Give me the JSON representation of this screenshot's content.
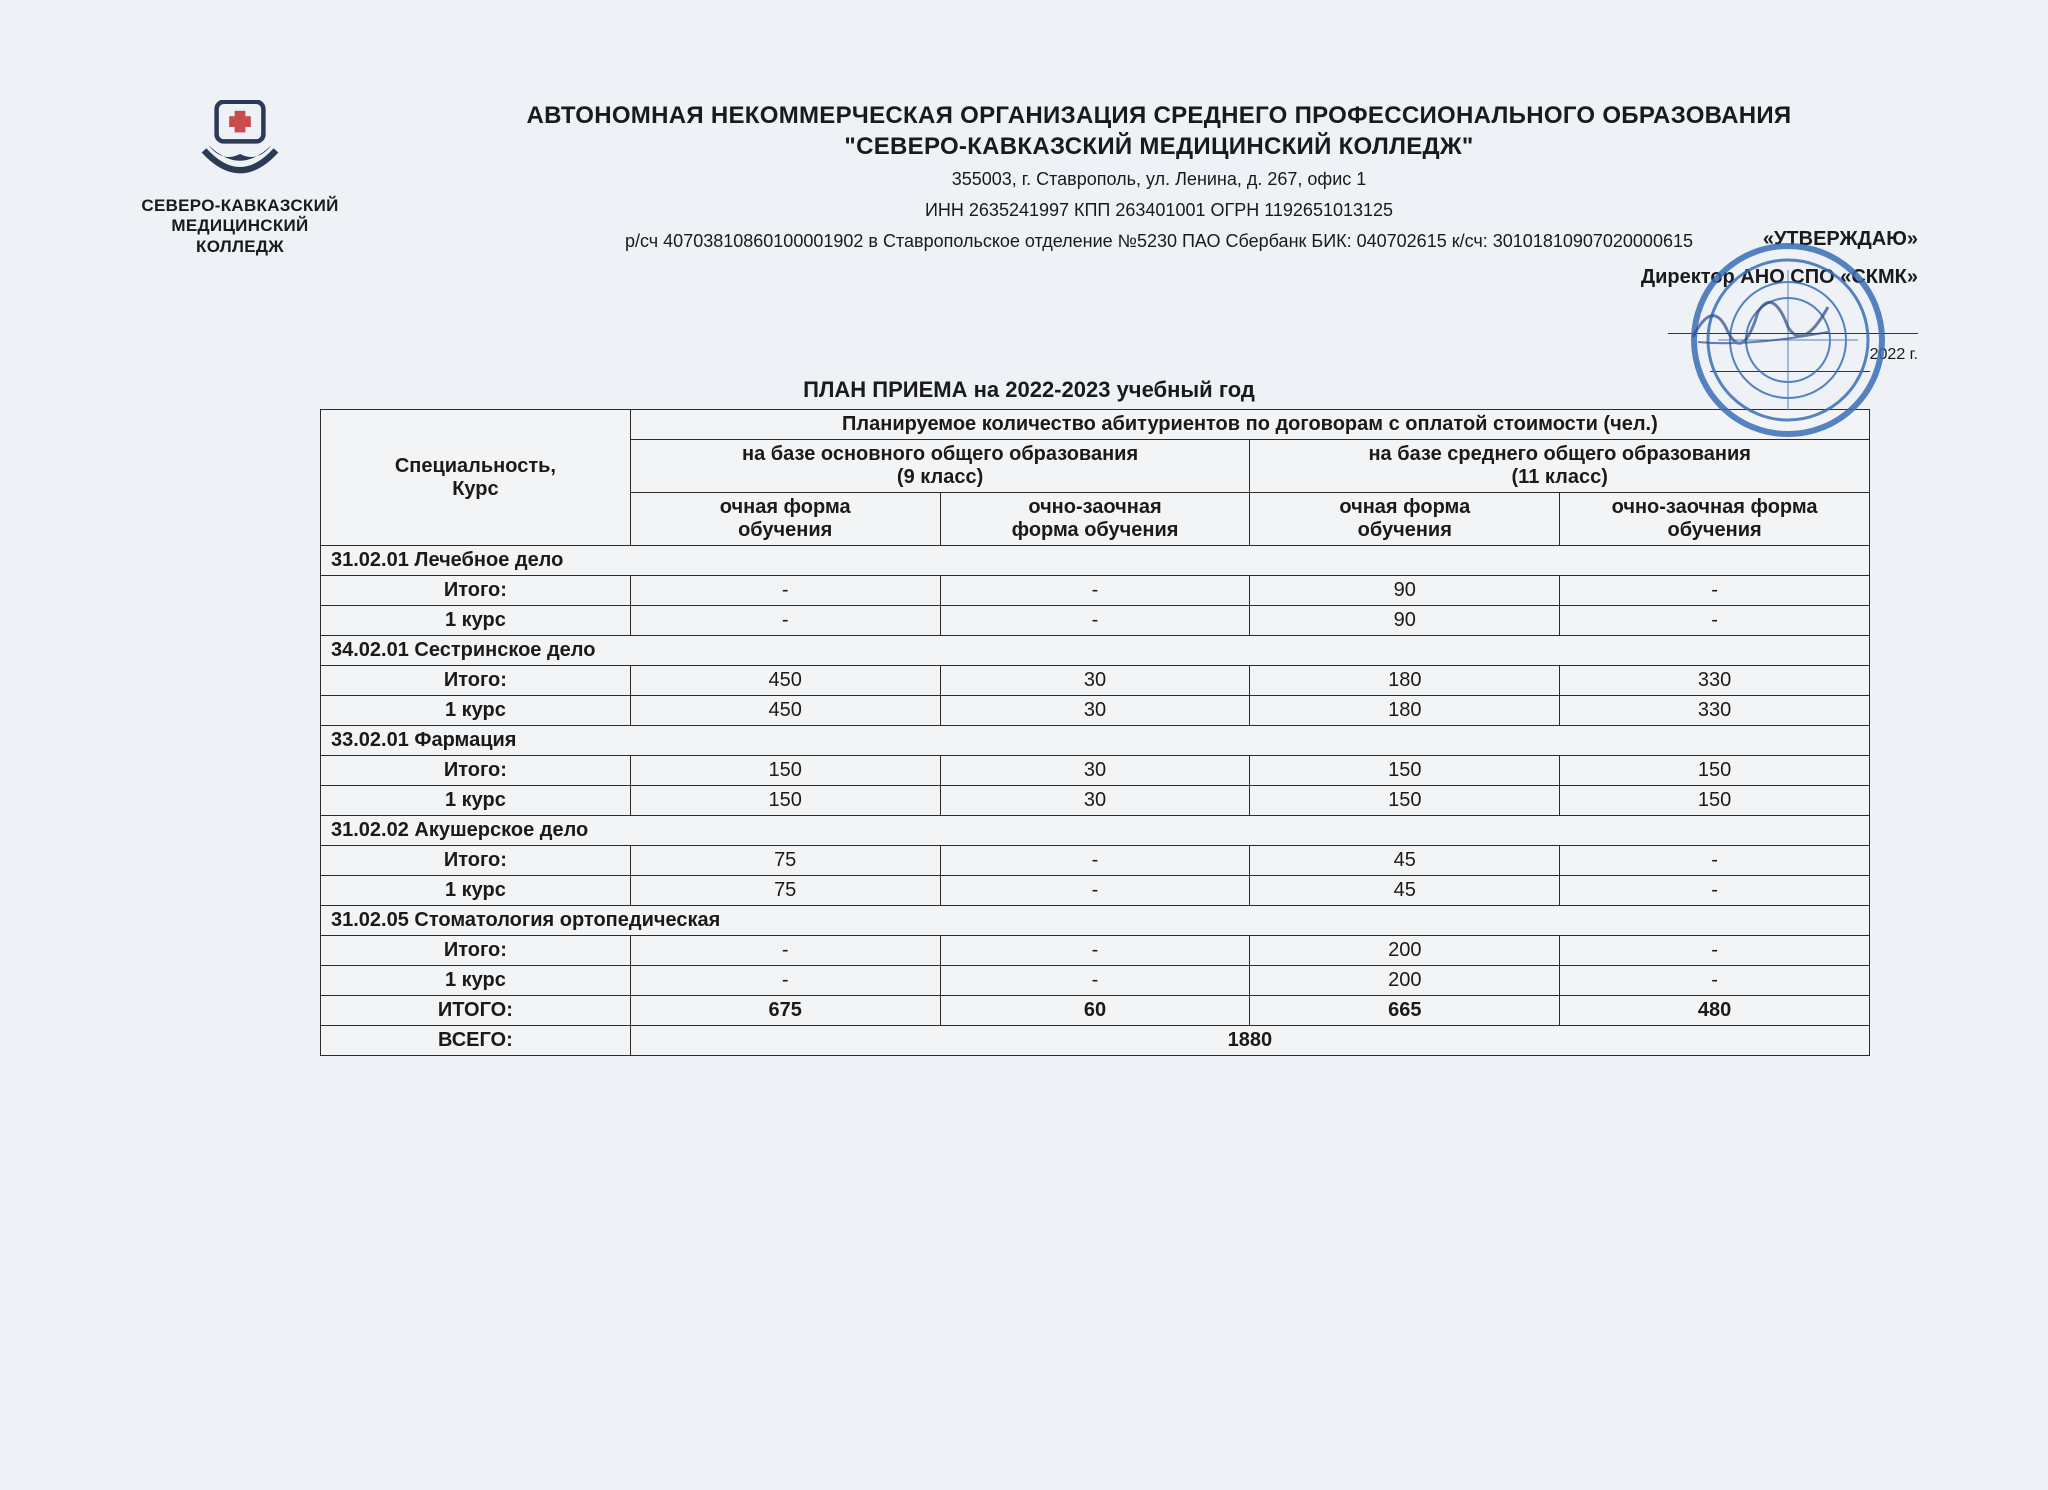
{
  "logo_caption": "СЕВЕРО-КАВКАЗСКИЙ\nМЕДИЦИНСКИЙ\nКОЛЛЕДЖ",
  "header": {
    "line1": "АВТОНОМНАЯ НЕКОММЕРЧЕСКАЯ ОРГАНИЗАЦИЯ СРЕДНЕГО ПРОФЕССИОНАЛЬНОГО ОБРАЗОВАНИЯ",
    "line2": "\"СЕВЕРО-КАВКАЗСКИЙ МЕДИЦИНСКИЙ КОЛЛЕДЖ\"",
    "addr1": "355003, г. Ставрополь, ул. Ленина, д.  267, офис 1",
    "addr2": "ИНН 2635241997 КПП 263401001 ОГРН 1192651013125",
    "addr3": "р/сч 40703810860100001902 в Ставропольское отделение №5230 ПАО Сбербанк  БИК: 040702615 к/сч: 30101810907020000615"
  },
  "approve": {
    "title": "«УТВЕРЖДАЮ»",
    "role": "Директор АНО СПО «СКМК»",
    "year": "2022 г."
  },
  "stamp_color": "#3a6fb8",
  "sign_color": "#2f4a8a",
  "table": {
    "title": "ПЛАН ПРИЕМА на 2022-2023 учебный год",
    "h_spec": "Специальность,\nКурс",
    "h_plan": "Планируемое количество абитуриентов по договорам с оплатой стоимости (чел.)",
    "h_base9": "на базе основного общего образования\n(9 класс)",
    "h_base11": "на базе среднего общего образования\n(11 класс)",
    "h_full9": "очная форма\nобучения",
    "h_part9": "очно-заочная\nформа обучения",
    "h_full11": "очная форма\nобучения",
    "h_part11": "очно-заочная форма\nобучения",
    "sections": [
      {
        "name": "31.02.01 Лечебное дело",
        "rows": [
          {
            "label": "Итого:",
            "v": [
              "-",
              "-",
              "90",
              "-"
            ]
          },
          {
            "label": "1 курс",
            "v": [
              "-",
              "-",
              "90",
              "-"
            ]
          }
        ]
      },
      {
        "name": "34.02.01 Сестринское дело",
        "rows": [
          {
            "label": "Итого:",
            "v": [
              "450",
              "30",
              "180",
              "330"
            ]
          },
          {
            "label": "1 курс",
            "v": [
              "450",
              "30",
              "180",
              "330"
            ]
          }
        ]
      },
      {
        "name": "33.02.01 Фармация",
        "rows": [
          {
            "label": "Итого:",
            "v": [
              "150",
              "30",
              "150",
              "150"
            ]
          },
          {
            "label": "1 курс",
            "v": [
              "150",
              "30",
              "150",
              "150"
            ]
          }
        ]
      },
      {
        "name": "31.02.02 Акушерское дело",
        "rows": [
          {
            "label": "Итого:",
            "v": [
              "75",
              "-",
              "45",
              "-"
            ]
          },
          {
            "label": "1 курс",
            "v": [
              "75",
              "-",
              "45",
              "-"
            ]
          }
        ]
      },
      {
        "name": "31.02.05 Стоматология ортопедическая",
        "rows": [
          {
            "label": "Итого:",
            "v": [
              "-",
              "-",
              "200",
              "-"
            ]
          },
          {
            "label": "1 курс",
            "v": [
              "-",
              "-",
              "200",
              "-"
            ]
          }
        ]
      }
    ],
    "total_row": {
      "label": "ИТОГО:",
      "v": [
        "675",
        "60",
        "665",
        "480"
      ]
    },
    "grand_row": {
      "label": "ВСЕГО:",
      "value": "1880"
    }
  }
}
